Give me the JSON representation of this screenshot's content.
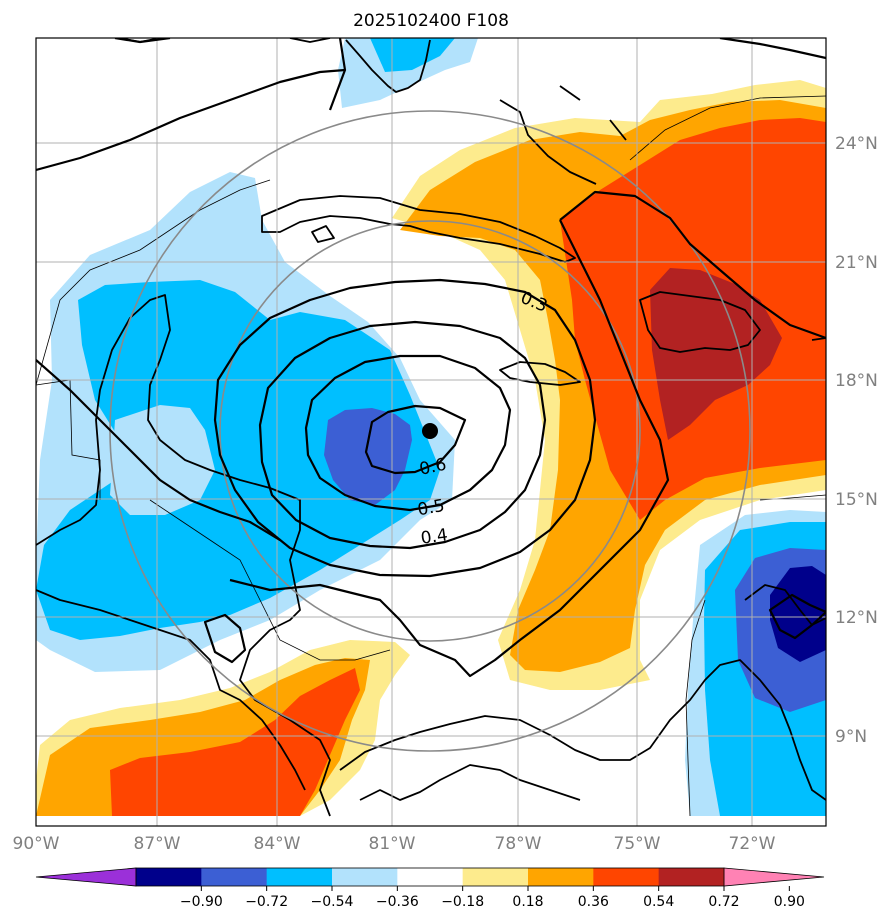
{
  "title": "2025102400 F108",
  "map": {
    "lon_labels": [
      "90°W",
      "87°W",
      "84°W",
      "81°W",
      "78°W",
      "75°W",
      "72°W"
    ],
    "lat_labels": [
      "24°N",
      "21°N",
      "18°N",
      "15°N",
      "12°N",
      "9°N"
    ],
    "extent": {
      "lon": [
        -90,
        -70
      ],
      "lat": [
        7.2,
        27
      ]
    },
    "center_marker": {
      "lon": -80.1,
      "lat": 16.7
    },
    "contour_labels": [
      {
        "text": "0.3",
        "value": 0.3
      },
      {
        "text": "0.6",
        "value": 0.6
      },
      {
        "text": "0.5",
        "value": 0.5
      },
      {
        "text": "0.4",
        "value": 0.4
      }
    ]
  },
  "colorbar": {
    "ticks": [
      "−0.90",
      "−0.72",
      "−0.54",
      "−0.36",
      "−0.18",
      "0.18",
      "0.36",
      "0.54",
      "0.72",
      "0.90"
    ],
    "colors": [
      "#9b30d9",
      "#00008b",
      "#3c5fd4",
      "#00bfff",
      "#b2e2fc",
      "#ffffff",
      "#fdeb8d",
      "#ffa500",
      "#ff4500",
      "#b22222",
      "#ff82b4"
    ]
  }
}
